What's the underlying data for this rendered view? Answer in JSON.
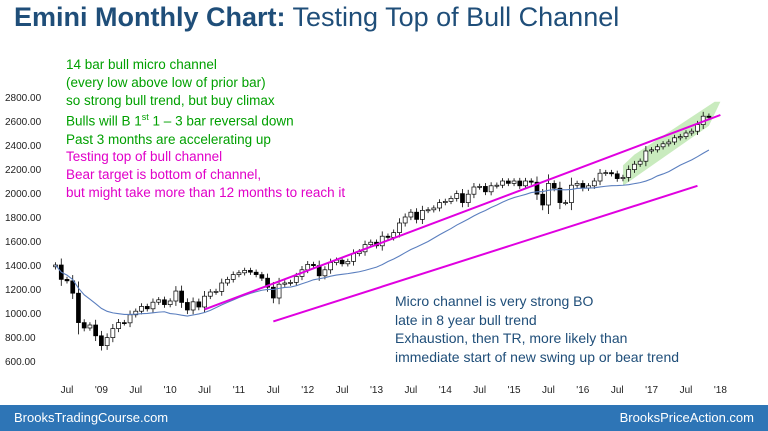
{
  "title": {
    "bold": "Emini Monthly Chart:",
    "rest": " Testing Top of Bull Channel"
  },
  "notes_top": [
    {
      "text": "14 bar bull micro channel",
      "color": "#00a000"
    },
    {
      "text": "(every low above low of prior bar)",
      "color": "#00a000"
    },
    {
      "text": "so strong bull trend, but buy climax",
      "color": "#00a000"
    },
    {
      "text": "Bulls will B 1",
      "sup": "st",
      "after": " 1 – 3 bar reversal down",
      "color": "#00a000"
    },
    {
      "text": "Past 3 months are accelerating up",
      "color": "#00a000"
    },
    {
      "text": "Testing top of bull channel",
      "color": "#e000c8"
    },
    {
      "text": "Bear target is bottom of channel,",
      "color": "#e000c8"
    },
    {
      "text": "but might take more than 12 months to reach it",
      "color": "#e000c8"
    }
  ],
  "notes_bottom": [
    "Micro channel is very strong BO",
    "late in 8 year bull trend",
    "Exhaustion, then TR, more likely than",
    "immediate start of new swing up or bear trend"
  ],
  "footer": {
    "left": "BrooksTradingCourse.com",
    "right": "BrooksPriceAction.com"
  },
  "colors": {
    "channel": "#e000e0",
    "ma": "#5b7fbf",
    "micro_channel_fill": "#b7e4a8",
    "footer_bg": "#2e75b6"
  },
  "chart_data": {
    "type": "candlestick",
    "title": "Emini Monthly Chart: Testing Top of Bull Channel",
    "x_ticks": [
      "Jul",
      "'09",
      "Jul",
      "'10",
      "Jul",
      "'11",
      "Jul",
      "'12",
      "Jul",
      "'13",
      "Jul",
      "'14",
      "Jul",
      "'15",
      "Jul",
      "'16",
      "Jul",
      "'17",
      "Jul",
      "'18"
    ],
    "y_ticks": [
      600,
      800,
      1000,
      1200,
      1400,
      1600,
      1800,
      2000,
      2200,
      2400,
      2600,
      2800
    ],
    "y_tick_labels": [
      "600.00",
      "800.00",
      "1000.00",
      "1200.00",
      "1400.00",
      "1600.00",
      "1800.00",
      "2000.00",
      "2200.00",
      "2400.00",
      "2600.00",
      "2800.00"
    ],
    "ylim": [
      480,
      2820
    ],
    "x_start": "2008-05",
    "closes": [
      1400,
      1280,
      1268,
      1165,
      920,
      875,
      900,
      810,
      728,
      795,
      870,
      920,
      918,
      985,
      1015,
      1055,
      1035,
      1090,
      1110,
      1070,
      1100,
      1183,
      1088,
      1025,
      1093,
      1050,
      1140,
      1175,
      1180,
      1250,
      1280,
      1320,
      1335,
      1355,
      1340,
      1320,
      1290,
      1215,
      1125,
      1240,
      1250,
      1255,
      1305,
      1360,
      1405,
      1395,
      1310,
      1360,
      1420,
      1440,
      1410,
      1430,
      1495,
      1510,
      1570,
      1590,
      1560,
      1640,
      1630,
      1670,
      1750,
      1800,
      1840,
      1780,
      1855,
      1860,
      1875,
      1920,
      1930,
      1955,
      1995,
      1920,
      1990,
      2050,
      2055,
      2010,
      2060,
      2065,
      2100,
      2080,
      2100,
      2060,
      2100,
      2090,
      1990,
      1900,
      2080,
      2040,
      1920,
      1920,
      2065,
      2080,
      2040,
      2060,
      2100,
      2165,
      2170,
      2160,
      2120,
      2130,
      2195,
      2240,
      2265,
      2350,
      2360,
      2385,
      2410,
      2425,
      2460,
      2470,
      2500,
      2515,
      2570,
      2640,
      2630
    ],
    "note": "closes are monthly values from 2008-05 through 2017-11; monthly candles are drawn from these values"
  }
}
